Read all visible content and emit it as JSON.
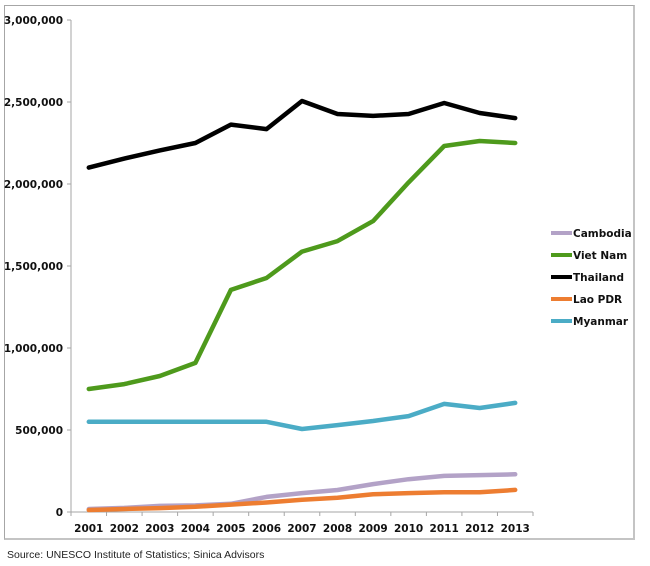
{
  "chart_data": {
    "type": "line",
    "title": "",
    "xlabel": "",
    "ylabel": "",
    "x": [
      "2001",
      "2002",
      "2003",
      "2004",
      "2005",
      "2006",
      "2007",
      "2008",
      "2009",
      "2010",
      "2011",
      "2012",
      "2013"
    ],
    "ylim": [
      0,
      3000000
    ],
    "yticks": [
      0,
      500000,
      1000000,
      1500000,
      2000000,
      2500000,
      3000000
    ],
    "ytick_labels": [
      "0",
      "500,000",
      "1,000,000",
      "1,500,000",
      "2,000,000",
      "2,500,000",
      "3,000,000"
    ],
    "grid": false,
    "legend_position": "right",
    "series": [
      {
        "name": "Cambodia",
        "color": "#b3a2c7",
        "values": [
          18000,
          25000,
          37000,
          40000,
          50000,
          92000,
          115000,
          134000,
          170000,
          200000,
          220000,
          225000,
          230000
        ]
      },
      {
        "name": "Viet Nam",
        "color": "#4e9a1c",
        "values": [
          750000,
          780000,
          829000,
          909000,
          1354000,
          1427000,
          1588000,
          1652000,
          1774000,
          2010000,
          2232000,
          2262000,
          2250000
        ]
      },
      {
        "name": "Thailand",
        "color": "#000000",
        "values": [
          2100000,
          2155000,
          2205000,
          2250000,
          2362000,
          2335000,
          2506000,
          2427000,
          2415000,
          2427000,
          2494000,
          2433000,
          2402000
        ]
      },
      {
        "name": "Lao PDR",
        "color": "#ed7d31",
        "values": [
          12000,
          18000,
          24000,
          32000,
          45000,
          58000,
          75000,
          87000,
          108000,
          115000,
          120000,
          120000,
          135000
        ]
      },
      {
        "name": "Myanmar",
        "color": "#4bacc6",
        "values": [
          550000,
          550000,
          550000,
          550000,
          550000,
          550000,
          506000,
          530000,
          555000,
          585000,
          659000,
          634000,
          665000
        ]
      }
    ]
  },
  "source": "Source: UNESCO Institute of Statistics; Sinica Advisors"
}
